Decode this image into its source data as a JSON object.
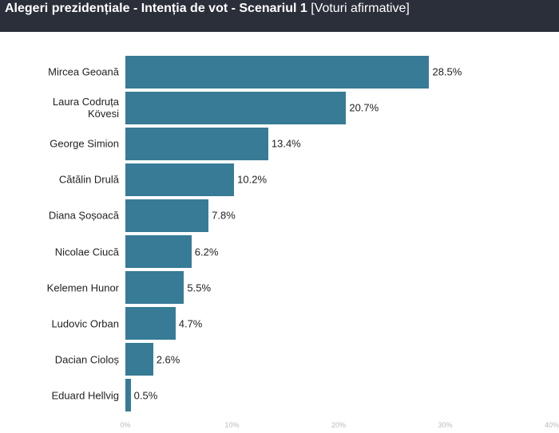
{
  "chart_data": {
    "type": "bar",
    "orientation": "horizontal",
    "title": "Alegeri prezidențiale - Intenția de vot - Scenariul 1",
    "subtitle": "[Voturi afirmative]",
    "categories": [
      "Mircea Geoană",
      "Laura Codruța Kövesi",
      "George Simion",
      "Cătălin Drulă",
      "Diana Șoșoacă",
      "Nicolae Ciucă",
      "Kelemen Hunor",
      "Ludovic Orban",
      "Dacian Cioloș",
      "Eduard Hellvig"
    ],
    "values": [
      28.5,
      20.7,
      13.4,
      10.2,
      7.8,
      6.2,
      5.5,
      4.7,
      2.6,
      0.5
    ],
    "value_labels": [
      "28.5%",
      "20.7%",
      "13.4%",
      "10.2%",
      "7.8%",
      "6.2%",
      "5.5%",
      "4.7%",
      "2.6%",
      "0.5%"
    ],
    "color": "#377b96",
    "xlim": [
      0,
      40
    ],
    "xticks": [
      {
        "value": 0,
        "label": "0%"
      },
      {
        "value": 10,
        "label": "10%"
      },
      {
        "value": 20,
        "label": "20%"
      },
      {
        "value": 30,
        "label": "30%"
      },
      {
        "value": 40,
        "label": "40%"
      }
    ]
  }
}
